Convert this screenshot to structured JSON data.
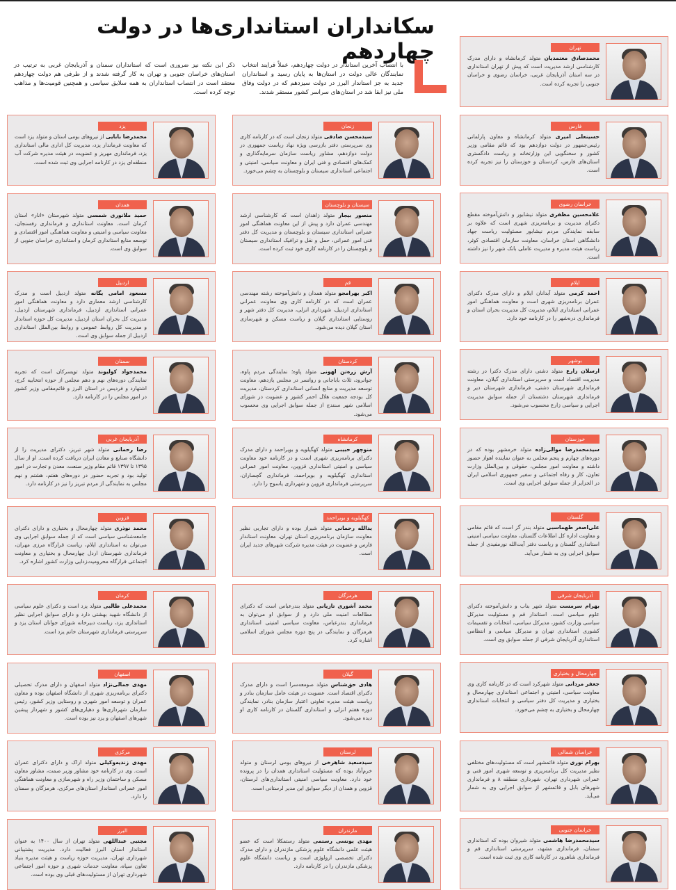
{
  "headline": "سکانداران استانداری‌ها در دولت چهاردهم",
  "intro": {
    "paragraph_1": "با انتصاب آخرین استاندار در دولت چهاردهم، عملاً فرایند انتخاب نمایندگان عالی دولت در استان‌ها به پایان رسید و استانداران جدید به جز استاندار البرز در دولت سیزدهم که در دولت وفاق ملی نیز ابقا شد در استان‌های سراسر کشور مستقر شدند.",
    "paragraph_2": "ذکر این نکته نیز ضروری است که استانداران سمنان و آذربایجان غربی به ترتیب در استان‌های خراسان جنوبی و تهران به کار گرفته شدند و از طرفی هم دولت چهاردهم معتقد است در انتصاب استانداران به همه سلایق سیاسی و همچنین قومیت‌ها و مذاهب توجه کرده است."
  },
  "colors": {
    "accent": "#f0614d",
    "card_background": "#ebe9ea",
    "card_border": "#ee8f7f"
  },
  "columns": {
    "right": [
      {
        "province": "تهران",
        "name": "محمدصادق معتمدیان",
        "bio": "متولد کرمانشاه و دارای مدرک کارشناسی ارشد مدیریت است که پیش از تهران استانداری در سه استان آذربایجان غربی، خراسان رضوی و خراسان جنوبی را تجربه کرده است."
      },
      {
        "province": "فارس",
        "name": "حسینعلی امیری",
        "bio": "متولد کرمانشاه و معاون پارلمانی رئیس‌جمهور در دولت دوازدهم بود که قائم مقامی وزیر کشور و سخنگویی این وزارتخانه و ریاست دادگستری استان‌های فارس، کردستان و خوزستان را نیز تجربه کرده است."
      },
      {
        "province": "خراسان رضوی",
        "name": "غلامحسین مظفری",
        "bio": "متولد نیشابور و دانش‌آموخته مقطع دکترای مدیریت و برنامه‌ریزی شهری است که علاوه بر سابقه نمایندگی مردم نیشابور مسئولیت ریاست جهاد دانشگاهی استان خراسان، معاونت سازمان اقتصادی کوثر، ریاست هیئت مدیره و مدیریت عاملی بانک شهر را نیز داشته است."
      },
      {
        "province": "ایلام",
        "name": "احمد کرمی",
        "bio": "متولد آبدانان ایلام و دارای مدرک دکترای عمران برنامه‌ریزی شهری است و معاونت هماهنگی امور عمرانی استانداری ایلام، مدیریت کل مدیریت بحران استان و فرمانداری دره‌شهر را در کارنامه خود دارد."
      },
      {
        "province": "بوشهر",
        "name": "ارسلان زارع",
        "bio": "متولد دشتی دارای مدرک دکترا در رشته مدیریت اقتصاد است و سرپرستی استانداری گیلان، معاونت فرمانداری شهرستان دشتی، فرمانداری شهرستان دیر و فرمانداری شهرستان دشتستان از جمله سوابق مدیریت اجرایی و سیاسی زارع محسوب می‌شود."
      },
      {
        "province": "خوزستان",
        "name": "سیدمحمدرضا موالی‌زاده",
        "bio": "متولد خرمشهر بوده که در دوره‌های چهارم و پنجم مجلس به عنوان نماینده اهواز حضور داشته و معاونت امور مجلس، حقوقی و بین‌الملل وزارت تعاون، کار و رفاه اجتماعی و سفیر جمهوری اسلامی ایران در الجزایر از جمله سوابق اجرایی وی است."
      },
      {
        "province": "گلستان",
        "name": "علی‌اصغر طهماسبی",
        "bio": "متولد بندر گز است که قائم مقامی و معاونت اداره کل اطلاعات گلستان، معاونت سیاسی امنیتی استانداری گلستان و ریاست دفتر آیت‌الله نورمفیدی از جمله سوابق اجرایی وی به شمار می‌آید."
      },
      {
        "province": "آذربایجان شرقی",
        "name": "بهرام سرمست",
        "bio": "متولد شهر بناب و دانش‌آموخته دکترای علوم سیاسی است. استاندار قم و مسئولیت مدیرکل سیاسی وزارت کشور، مدیرکل سیاسی، انتخابات و تقسیمات کشوری استانداری تهران و مدیرکل سیاسی و انتظامی استانداری آذربایجان شرقی از جمله سوابق وی است."
      },
      {
        "province": "چهارمحال و بختیاری",
        "name": "جعفر مردانی",
        "bio": "متولد شهرکرد است که در کارنامه کاری وی معاونت سیاسی، امنیتی و اجتماعی استانداری چهارمحال و بختیاری و مدیریت کل دفتر سیاسی و انتخابات استانداری چهارمحال و بختیاری به چشم می‌خورد."
      },
      {
        "province": "خراسان شمالی",
        "name": "بهرام نوری",
        "bio": "متولد قائمشهر است که مسئولیت‌های مختلفی نظیر مدیریت کل برنامه‌ریزی و توسعه شهری امور فنی و عمرانی شهرداری تهران، شهرداری منطقه ۸ و فرمانداری شهرهای بابل و قائمشهر از سوابق اجرایی وی به شمار می‌آید."
      },
      {
        "province": "خراسان جنوبی",
        "name": "سیدمحمدرضا هاشمی",
        "bio": "متولد شیروان بوده که استانداری سمنان، فرمانداری مشهد، سرپرستی استانداری قم و فرمانداری شاهرود در کارنامه کاری وی ثبت شده است."
      }
    ],
    "middle": [
      {
        "province": "زنجان",
        "name": "سیدمحسن صادقی",
        "bio": "متولد زنجان است که در کارنامه کاری وی سرپرستی دفتر بازرسی ویژه نهاد ریاست جمهوری در دولت دوازدهم، مشاور ریاست سازمان سرمایه‌گذاری و کمک‌های اقتصادی و فنی ایران و معاونت سیاسی، امنیتی و اجتماعی استانداری سیستان و بلوچستان به چشم می‌خورد."
      },
      {
        "province": "سیستان و بلوچستان",
        "name": "منصور بیجار",
        "bio": "متولد زاهدان است که کارشناسی ارشد مهندسی عمران دارد و پیش از این معاونت هماهنگی امور عمرانی استانداری سیستان و بلوچستان و مدیریت کل دفتر فنی امور عمرانی، حمل و نقل و ترافیک استانداری سیستان و بلوچستان را در کارنامه کاری خود ثبت کرده است."
      },
      {
        "province": "قم",
        "name": "اکبر بهرامجو",
        "bio": "متولد همدان و دانش‌آموخته رشته مهندسی عمران است که در کارنامه کاری وی معاونت عمرانی استانداری اردبیل، شهرداری انزلی، مدیریت کل دفتر شهر و روستایی استانداری گیلان و ریاست مسکن و شهرسازی استان گیلان دیده می‌شود."
      },
      {
        "province": "کردستان",
        "name": "آرش زره‌تن لهونی",
        "bio": "متولد پاوه؛ نمایندگی مردم پاوه، جوانرود، ثلاث باباجانی و روانسر در مجلس یازدهم، معاونت توسعه مدیریت و منابع انسانی استانداری کردستان، مدیریت کل بودجه جمعیت هلال احمر کشور و عضویت در شورای اسلامی شهر سنندج از جمله سوابق اجرایی وی محسوب می‌شود."
      },
      {
        "province": "کرمانشاه",
        "name": "منوچهر حبیبی",
        "bio": "متولد کهگیلویه و بویراحمد و دارای مدرک دکترای برنامه‌ریزی شهری است و در کارنامه خود معاونت سیاسی و امنیتی استانداری قزوین، معاونت امور عمرانی استانداری کهگیلویه و بویراحمد، فرمانداری گچساران، سرپرستی فرمانداری قزوین و شهرداری یاسوج را دارد."
      },
      {
        "province": "کهگیلویه و بویراحمد",
        "name": "یدالله رحمانی",
        "bio": "متولد شیراز بوده و دارای تجاربی نظیر معاونت سازمان برنامه‌ریزی استان تهران، معاونت استاندار فارس و عضویت در هیئت مدیره شرکت شهرهای جدید ایران است."
      },
      {
        "province": "هرمزگان",
        "name": "محمد آشوری تازیانی",
        "bio": "متولد بندرعباس است که دکترای مطالعات امنیت ملی دارد و از سوابق او می‌توان به فرمانداری بندرعباس، معاونت سیاسی امنیتی استانداری هرمزگان و نمایندگی در پنج دوره مجلس شورای اسلامی اشاره کرد."
      },
      {
        "province": "گیلان",
        "name": "هادی حق‌شناس",
        "bio": "متولد صومعه‌سرا است و دارای مدرک دکترای اقتصاد است. عضویت در هیئت عامل سازمان بنادر و ریاست هیئت مدیره تعاونی اعتبار سازمان بنادر، نمایندگی دوره هفتم انزلی و استانداری گلستان در کارنامه کاری او دیده می‌شود."
      },
      {
        "province": "لرستان",
        "name": "سیدسعید شاهرخی",
        "bio": "از نیروهای بومی لرستان و متولد خرم‌آباد بوده که مسئولیت استانداری همدان را در پرونده خود دارد. معاونت سیاسی امنیتی استانداری‌های لرستان، قزوین و همدان از دیگر سوابق این مدیر لرستانی است."
      },
      {
        "province": "مازندران",
        "name": "مهدی یونسی رستمی",
        "bio": "متولد رستمکلا است که عضو هیئت علمی دانشگاه علوم پزشکی مازندران و دارای مدرک دکترای تخصصی ارولوژی است و ریاست دانشگاه علوم پزشکی مازندران را در کارنامه دارد."
      }
    ],
    "left": [
      {
        "province": "یزد",
        "name": "محمدرضا بابایی",
        "bio": "از نیروهای بومی استان و متولد یزد است که معاونت فرماندار یزد، مدیریت کل اداری مالی استانداری یزد، فرمانداری مهریز و عضویت در هیئت مدیره شرکت آب منطقه‌ای یزد در کارنامه اجرایی وی ثبت شده است."
      },
      {
        "province": "همدان",
        "name": "حمید ملانوری شمسی",
        "bio": "متولد شهرستان «انار» استان کرمان است. معاونت استانداری و فرمانداری رفسنجان، معاونت سیاسی و امنیتی و معاونت هماهنگی امور اقتصادی و توسعه منابع استانداری کرمان و استانداری خراسان جنوبی از سوابق وی است."
      },
      {
        "province": "اردبیل",
        "name": "مسعود امامی یگانه",
        "bio": "متولد اردبیل است و مدرک کارشناسی ارشد معماری دارد و معاونت هماهنگی امور عمرانی استانداری اردبیل، فرمانداری شهرستان اردبیل، مدیریت کل بحران استان اردبیل، مدیریت کل حوزه استاندار و مدیریت کل روابط عمومی و روابط بین‌الملل استانداری اردبیل از جمله سوابق وی است."
      },
      {
        "province": "سمنان",
        "name": "محمدجواد کولیوند",
        "bio": "متولد تویسرکان است که تجربه نمایندگی دوره‌های نهم و دهم مجلس از حوزه انتخابیه کرج، اشتهارد و فردیس در استان البرز و قائم‌مقامی وزیر کشور در امور مجلس را در کارنامه دارد."
      },
      {
        "province": "آذربایجان غربی",
        "name": "رضا رحمانی",
        "bio": "متولد شهر تبریز، دکترای مدیریت را از دانشگاه صنایع و معادن ایران دریافت کرده است. او از سال ۱۳۹۵ تا ۱۳۹۷ قائم مقام وزیر صنعت، معدن و تجارت در امور تولید بود و تجربه حضور در دوره‌های هفتم، هشتم و نهم مجلس به نمایندگی از مردم تبریز را نیز در کارنامه دارد."
      },
      {
        "province": "قزوین",
        "name": "محمد نوذری",
        "bio": "متولد چهارمحال و بختیاری و دارای دکترای جامعه‌شناسی سیاسی است که از جمله سوابق اجرایی وی می‌توان به استانداری ایلام، ریاست قرارگاه مرزی مهران، فرمانداری شهرستان اردل چهارمحال و بختیاری و معاونت اجتماعی قرارگاه محرومیت‌زدایی وزارت کشور اشاره کرد."
      },
      {
        "province": "کرمان",
        "name": "محمدعلی طالبی",
        "bio": "متولد یزد است و دکترای علوم سیاسی از دانشگاه شهید بهشتی دارد و دارای سوابق اجرایی نظیر استانداری یزد، ریاست دبیرخانه شورای جوانان استان یزد و سرپرستی فرمانداری شهرستان خاتم یزد است."
      },
      {
        "province": "اصفهان",
        "name": "مهدی جمالی‌نژاد",
        "bio": "متولد اصفهان و دارای مدرک تحصیلی دکترای برنامه‌ریزی شهری از دانشگاه اصفهان بوده و معاون عمران و توسعه امور شهری و روستایی وزیر کشور، رئیس سازمان شهرداری‌ها و دهیاری‌های کشور و شهردار پیشین شهرهای اصفهان و یزد نیز بوده است."
      },
      {
        "province": "مرکزی",
        "name": "مهدی زندیه‌وکیلی",
        "bio": "متولد اراک و دارای دکترای عمران است. وی در کارنامه خود مشاور وزیر صمت، مشاور معاون مسکن و ساختمان وزیر راه و شهرسازی و معاونت هماهنگی امور عمرانی استاندار استان‌های مرکزی، هرمزگان و سمنان را دارد."
      },
      {
        "province": "البرز",
        "name": "مجتبی عبداللهی",
        "bio": "متولد تهران از سال ۱۴۰۰ به عنوان استاندار استان البرز فعالیت دارد. مدیریت پشتیبانی شهرداری تهران، مدیریت حوزه ریاست و هیئت مدیره بنیاد تعاون سپاه، معاونت خدمات شهری و حوزه امور اجتماعی شهرداری تهران از مسئولیت‌های قبلی وی بوده است."
      }
    ]
  }
}
